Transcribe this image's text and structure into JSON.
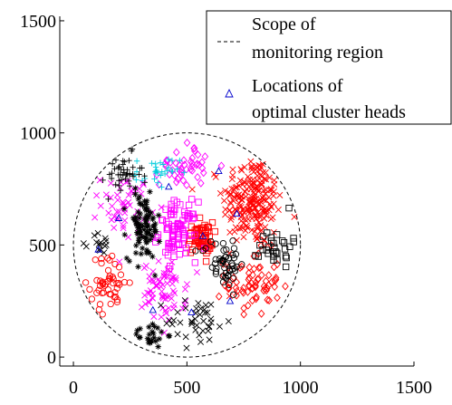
{
  "chart_data": {
    "type": "scatter",
    "title": "",
    "xlabel": "",
    "ylabel": "",
    "xlim": [
      -60,
      1500
    ],
    "ylim": [
      -40,
      1520
    ],
    "x_ticks": [
      0,
      500,
      1000,
      1500
    ],
    "y_ticks": [
      0,
      500,
      1000,
      1500
    ],
    "grid": false,
    "legend_position": "top-right",
    "legend": [
      {
        "label_line1": "Scope of",
        "label_line2": "monitoring region",
        "style": "dashed-line",
        "color": "#000000"
      },
      {
        "label_line1": "Locations of",
        "label_line2": "optimal cluster heads",
        "style": "triangle-marker",
        "color": "#0000cc"
      }
    ],
    "monitoring_region": {
      "shape": "circle",
      "center": [
        500,
        500
      ],
      "radius": 500,
      "style": "dashed",
      "color": "#000000"
    },
    "cluster_heads": [
      [
        110,
        480
      ],
      [
        350,
        210
      ],
      [
        520,
        200
      ],
      [
        570,
        540
      ],
      [
        720,
        640
      ],
      [
        690,
        250
      ],
      [
        420,
        760
      ],
      [
        640,
        830
      ],
      [
        200,
        620
      ]
    ],
    "clusters": [
      {
        "color": "#ff0000",
        "marker": "x",
        "center": [
          790,
          700
        ],
        "spread": [
          110,
          170
        ],
        "count": 210
      },
      {
        "color": "#ff0000",
        "marker": "diamond",
        "center": [
          790,
          330
        ],
        "spread": [
          100,
          120
        ],
        "count": 70
      },
      {
        "color": "#ff0000",
        "marker": "circle",
        "center": [
          160,
          330
        ],
        "spread": [
          70,
          100
        ],
        "count": 50
      },
      {
        "color": "#ff0000",
        "marker": "square",
        "center": [
          560,
          530
        ],
        "spread": [
          45,
          60
        ],
        "count": 60
      },
      {
        "color": "#ff00ff",
        "marker": "square",
        "center": [
          460,
          560
        ],
        "spread": [
          70,
          110
        ],
        "count": 90
      },
      {
        "color": "#ff00ff",
        "marker": "x",
        "center": [
          400,
          290
        ],
        "spread": [
          80,
          110
        ],
        "count": 70
      },
      {
        "color": "#ff00ff",
        "marker": "diamond",
        "center": [
          490,
          860
        ],
        "spread": [
          90,
          80
        ],
        "count": 45
      },
      {
        "color": "#ff00ff",
        "marker": "x",
        "center": [
          230,
          680
        ],
        "spread": [
          90,
          110
        ],
        "count": 50
      },
      {
        "color": "#00ccdd",
        "marker": "plus",
        "center": [
          370,
          820
        ],
        "spread": [
          80,
          60
        ],
        "count": 30
      },
      {
        "color": "#000000",
        "marker": "star",
        "center": [
          310,
          580
        ],
        "spread": [
          60,
          120
        ],
        "count": 90
      },
      {
        "color": "#000000",
        "marker": "plus",
        "center": [
          220,
          810
        ],
        "spread": [
          70,
          80
        ],
        "count": 45
      },
      {
        "color": "#000000",
        "marker": "circle",
        "center": [
          660,
          420
        ],
        "spread": [
          80,
          90
        ],
        "count": 50
      },
      {
        "color": "#000000",
        "marker": "square",
        "center": [
          890,
          500
        ],
        "spread": [
          60,
          80
        ],
        "count": 30
      },
      {
        "color": "#000000",
        "marker": "x",
        "center": [
          550,
          160
        ],
        "spread": [
          120,
          90
        ],
        "count": 40
      },
      {
        "color": "#000000",
        "marker": "star",
        "center": [
          340,
          100
        ],
        "spread": [
          60,
          50
        ],
        "count": 25
      },
      {
        "color": "#000000",
        "marker": "x",
        "center": [
          120,
          500
        ],
        "spread": [
          40,
          50
        ],
        "count": 15
      }
    ]
  }
}
